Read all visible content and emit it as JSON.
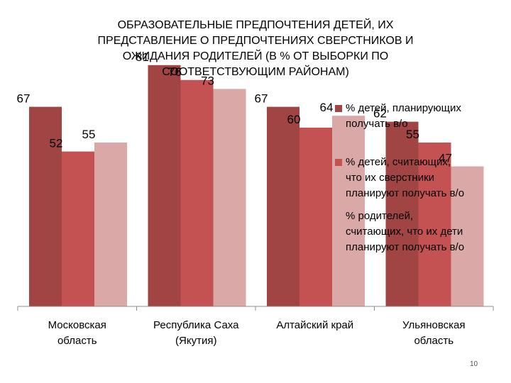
{
  "chart_data": {
    "type": "bar",
    "title": "ОБРАЗОВАТЕЛЬНЫЕ ПРЕДПОЧТЕНИЯ ДЕТЕЙ, ИХ ПРЕДСТАВЛЕНИЕ О ПРЕДПОЧТЕНИЯХ СВЕРСТНИКОВ И ОЖИДАНИЯ РОДИТЕЛЕЙ (В % ОТ ВЫБОРКИ ПО СООТВЕТСТВУЮЩИМ РАЙОНАМ)",
    "title_lines": [
      "ОБРАЗОВАТЕЛЬНЫЕ ПРЕДПОЧТЕНИЯ ДЕТЕЙ,  ИХ",
      "ПРЕДСТАВЛЕНИЕ О ПРЕДПОЧТЕНИЯХ СВЕРСТНИКОВ И",
      "ОЖИДАНИЯ РОДИТЕЛЕЙ (В % ОТ ВЫБОРКИ ПО",
      "СООТВЕТСТВУЮЩИМ РАЙОНАМ)"
    ],
    "categories": [
      [
        "Московская",
        "область"
      ],
      [
        "Республика Саха",
        "(Якутия)"
      ],
      [
        "Алтайский край"
      ],
      [
        "Ульяновская",
        "область"
      ]
    ],
    "series": [
      {
        "name": "% детей, планирующих получать в/о",
        "name_lines": [
          "% детей, планирующих",
          "получать в/о"
        ],
        "color": "#a04444",
        "values": [
          67,
          81,
          67,
          62
        ]
      },
      {
        "name": "% детей, считающих, что их сверстники планируют получать в/о",
        "name_lines": [
          "% детей, считающих,",
          "что их сверстники",
          "планируют получать в/о"
        ],
        "color": "#c55252",
        "values": [
          52,
          76,
          60,
          55
        ]
      },
      {
        "name": "% родителей, считающих, что их дети планируют получать в/о",
        "name_lines": [
          "% родителей,",
          "считающих, что их дети",
          "планируют получать в/о"
        ],
        "color": "#dba8a8",
        "values": [
          55,
          73,
          64,
          47
        ]
      }
    ],
    "ylim": [
      0,
      100
    ],
    "grid": false,
    "legend_position": "right",
    "data_labels": true
  },
  "page_number": "10"
}
